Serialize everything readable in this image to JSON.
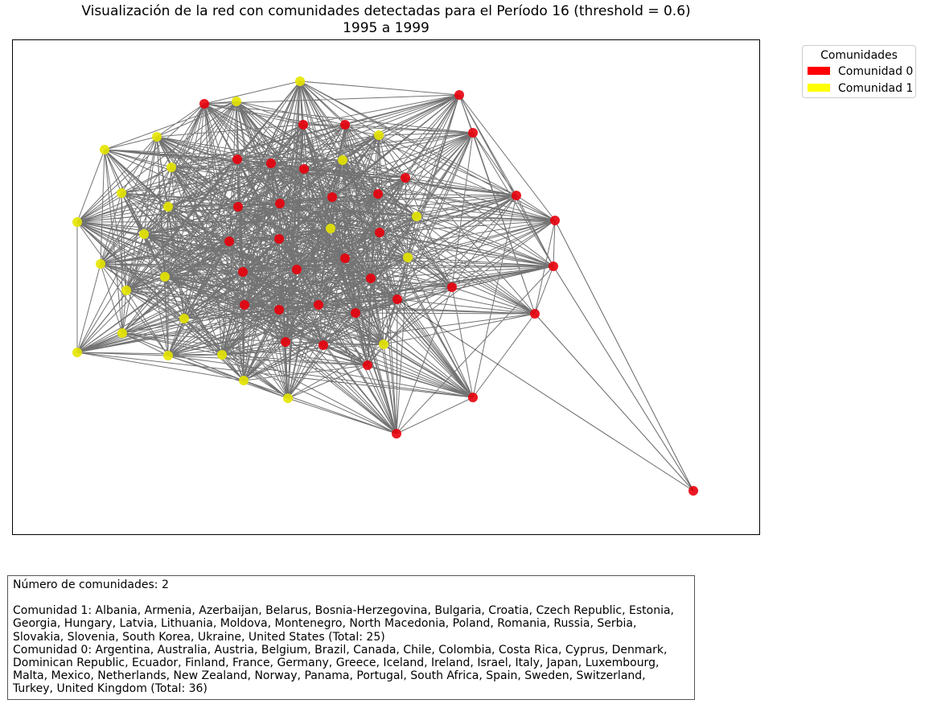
{
  "figure": {
    "title_line1": "Visualización de la red con comunidades detectadas para el Período 16 (threshold = 0.6)",
    "title_line2": "1995 a 1999"
  },
  "legend": {
    "title": "Comunidades",
    "items": [
      {
        "label": "Comunidad 0",
        "color": "#ff0000"
      },
      {
        "label": "Comunidad 1",
        "color": "#ffff00"
      }
    ]
  },
  "colors": {
    "comunidad_0": "#e8000b",
    "comunidad_1": "#e5e500",
    "edge": "#000000"
  },
  "summary": {
    "count_line": "Número de comunidades: 2",
    "community_1": "Comunidad 1: Albania, Armenia, Azerbaijan, Belarus, Bosnia-Herzegovina, Bulgaria, Croatia, Czech Republic, Estonia, Georgia, Hungary, Latvia, Lithuania, Moldova, Montenegro, North Macedonia, Poland, Romania, Russia, Serbia, Slovakia, Slovenia, South Korea, Ukraine, United States (Total: 25)",
    "community_0": "Comunidad 0: Argentina, Australia, Austria, Belgium, Brazil, Canada, Chile, Colombia, Costa Rica, Cyprus, Denmark, Dominican Republic, Ecuador, Finland, France, Germany, Greece, Iceland, Ireland, Israel, Italy, Japan, Luxembourg, Malta, Mexico, Netherlands, New Zealand, Norway, Panama, Portugal, South Africa, Spain, Sweden, Switzerland, Turkey, United Kingdom (Total: 36)"
  }
}
